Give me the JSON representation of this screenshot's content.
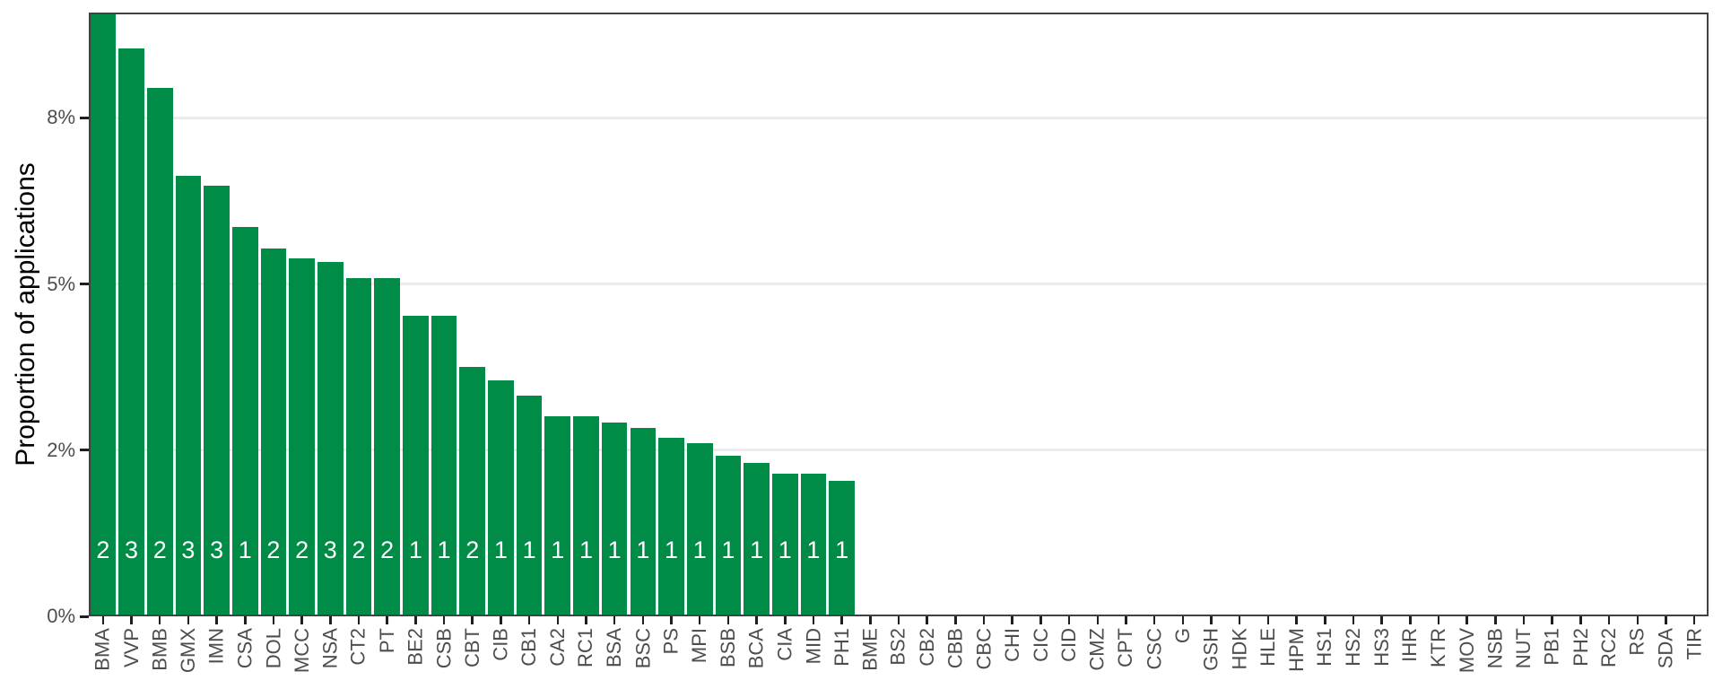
{
  "figure": {
    "background": "#ffffff"
  },
  "chart_data": {
    "type": "bar",
    "title": "",
    "xlabel": "",
    "ylabel": "Proportion of applications",
    "legend_position": "none",
    "grid": "major-y-only",
    "bar_color": "#008B46",
    "bar_label_color": "#ffffff",
    "grid_color": "#ebebeb",
    "axis_text_color": "#4d4d4d",
    "panel_border_color": "#414141",
    "ylim_pct": [
      0,
      9.08
    ],
    "y_ticks": [
      {
        "label": "0%",
        "pct": 0
      },
      {
        "label": "2%",
        "pct": 2.5
      },
      {
        "label": "5%",
        "pct": 5
      },
      {
        "label": "8%",
        "pct": 7.5
      }
    ],
    "bars": [
      {
        "category": "BMA",
        "value_pct": 9.07,
        "count_label": "2"
      },
      {
        "category": "VVP",
        "value_pct": 8.54,
        "count_label": "3"
      },
      {
        "category": "BMB",
        "value_pct": 7.95,
        "count_label": "2"
      },
      {
        "category": "GMX",
        "value_pct": 6.63,
        "count_label": "3"
      },
      {
        "category": "IMN",
        "value_pct": 6.48,
        "count_label": "3"
      },
      {
        "category": "CSA",
        "value_pct": 5.86,
        "count_label": "1"
      },
      {
        "category": "DOL",
        "value_pct": 5.53,
        "count_label": "2"
      },
      {
        "category": "MCC",
        "value_pct": 5.38,
        "count_label": "2"
      },
      {
        "category": "NSA",
        "value_pct": 5.33,
        "count_label": "3"
      },
      {
        "category": "CT2",
        "value_pct": 5.09,
        "count_label": "2"
      },
      {
        "category": "PT",
        "value_pct": 5.09,
        "count_label": "2"
      },
      {
        "category": "BE2",
        "value_pct": 4.52,
        "count_label": "1"
      },
      {
        "category": "CSB",
        "value_pct": 4.52,
        "count_label": "1"
      },
      {
        "category": "CBT",
        "value_pct": 3.75,
        "count_label": "2"
      },
      {
        "category": "CIB",
        "value_pct": 3.55,
        "count_label": "1"
      },
      {
        "category": "CB1",
        "value_pct": 3.32,
        "count_label": "1"
      },
      {
        "category": "CA2",
        "value_pct": 3.01,
        "count_label": "1"
      },
      {
        "category": "RC1",
        "value_pct": 3.01,
        "count_label": "1"
      },
      {
        "category": "BSA",
        "value_pct": 2.92,
        "count_label": "1"
      },
      {
        "category": "BSC",
        "value_pct": 2.83,
        "count_label": "1"
      },
      {
        "category": "PS",
        "value_pct": 2.68,
        "count_label": "1"
      },
      {
        "category": "MPI",
        "value_pct": 2.61,
        "count_label": "1"
      },
      {
        "category": "BSB",
        "value_pct": 2.42,
        "count_label": "1"
      },
      {
        "category": "BCA",
        "value_pct": 2.31,
        "count_label": "1"
      },
      {
        "category": "CIA",
        "value_pct": 2.15,
        "count_label": "1"
      },
      {
        "category": "MID",
        "value_pct": 2.15,
        "count_label": "1"
      },
      {
        "category": "PH1",
        "value_pct": 2.04,
        "count_label": "1"
      },
      {
        "category": "BME",
        "value_pct": 0,
        "count_label": ""
      },
      {
        "category": "BS2",
        "value_pct": 0,
        "count_label": ""
      },
      {
        "category": "CB2",
        "value_pct": 0,
        "count_label": ""
      },
      {
        "category": "CBB",
        "value_pct": 0,
        "count_label": ""
      },
      {
        "category": "CBC",
        "value_pct": 0,
        "count_label": ""
      },
      {
        "category": "CHI",
        "value_pct": 0,
        "count_label": ""
      },
      {
        "category": "CIC",
        "value_pct": 0,
        "count_label": ""
      },
      {
        "category": "CID",
        "value_pct": 0,
        "count_label": ""
      },
      {
        "category": "CMZ",
        "value_pct": 0,
        "count_label": ""
      },
      {
        "category": "CPT",
        "value_pct": 0,
        "count_label": ""
      },
      {
        "category": "CSC",
        "value_pct": 0,
        "count_label": ""
      },
      {
        "category": "G",
        "value_pct": 0,
        "count_label": ""
      },
      {
        "category": "GSH",
        "value_pct": 0,
        "count_label": ""
      },
      {
        "category": "HDK",
        "value_pct": 0,
        "count_label": ""
      },
      {
        "category": "HLE",
        "value_pct": 0,
        "count_label": ""
      },
      {
        "category": "HPM",
        "value_pct": 0,
        "count_label": ""
      },
      {
        "category": "HS1",
        "value_pct": 0,
        "count_label": ""
      },
      {
        "category": "HS2",
        "value_pct": 0,
        "count_label": ""
      },
      {
        "category": "HS3",
        "value_pct": 0,
        "count_label": ""
      },
      {
        "category": "IHR",
        "value_pct": 0,
        "count_label": ""
      },
      {
        "category": "KTR",
        "value_pct": 0,
        "count_label": ""
      },
      {
        "category": "MOV",
        "value_pct": 0,
        "count_label": ""
      },
      {
        "category": "NSB",
        "value_pct": 0,
        "count_label": ""
      },
      {
        "category": "NUT",
        "value_pct": 0,
        "count_label": ""
      },
      {
        "category": "PB1",
        "value_pct": 0,
        "count_label": ""
      },
      {
        "category": "PH2",
        "value_pct": 0,
        "count_label": ""
      },
      {
        "category": "RC2",
        "value_pct": 0,
        "count_label": ""
      },
      {
        "category": "RS",
        "value_pct": 0,
        "count_label": ""
      },
      {
        "category": "SDA",
        "value_pct": 0,
        "count_label": ""
      },
      {
        "category": "TIR",
        "value_pct": 0,
        "count_label": ""
      }
    ]
  }
}
